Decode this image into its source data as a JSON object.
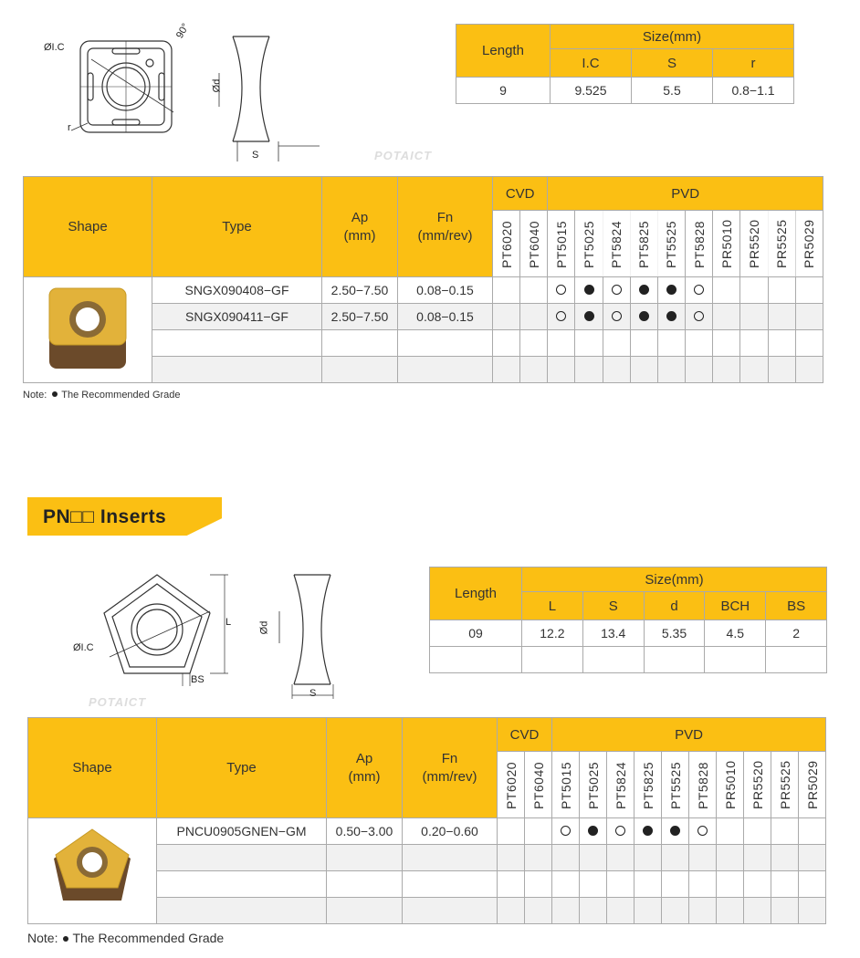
{
  "watermark": "POTAICT",
  "section1": {
    "diagram_labels": {
      "ic": "ØI.C",
      "r": "r",
      "angle": "90°",
      "d": "Ød",
      "s": "S"
    },
    "size_table": {
      "length_header": "Length",
      "size_header": "Size(mm)",
      "cols": [
        "I.C",
        "S",
        "r"
      ],
      "rows": [
        [
          "9",
          "9.525",
          "5.5",
          "0.8−1.1"
        ]
      ]
    },
    "grade_table": {
      "shape_header": "Shape",
      "type_header": "Type",
      "ap_header": "Ap\n(mm)",
      "fn_header": "Fn\n(mm/rev)",
      "cvd": "CVD",
      "pvd": "PVD",
      "grades": [
        "PT6020",
        "PT6040",
        "PT5015",
        "PT5025",
        "PT5824",
        "PT5825",
        "PT5525",
        "PT5828",
        "PR5010",
        "PR5520",
        "PR5525",
        "PR5029"
      ],
      "rows": [
        {
          "type": "SNGX090408−GF",
          "ap": "2.50−7.50",
          "fn": "0.08−0.15",
          "marks": [
            "",
            "",
            "open",
            "filled",
            "open",
            "filled",
            "filled",
            "open",
            "",
            "",
            "",
            ""
          ]
        },
        {
          "type": "SNGX090411−GF",
          "ap": "2.50−7.50",
          "fn": "0.08−0.15",
          "marks": [
            "",
            "",
            "open",
            "filled",
            "open",
            "filled",
            "filled",
            "open",
            "",
            "",
            "",
            ""
          ]
        },
        {
          "type": "",
          "ap": "",
          "fn": "",
          "marks": [
            "",
            "",
            "",
            "",
            "",
            "",
            "",
            "",
            "",
            "",
            "",
            ""
          ]
        },
        {
          "type": "",
          "ap": "",
          "fn": "",
          "marks": [
            "",
            "",
            "",
            "",
            "",
            "",
            "",
            "",
            "",
            "",
            "",
            ""
          ]
        }
      ]
    },
    "note_label": "Note:",
    "note_text": "The Recommended Grade"
  },
  "section2": {
    "title": "PN□□ Inserts",
    "diagram_labels": {
      "ic": "ØI.C",
      "l": "L",
      "bs": "BS",
      "d": "Ød",
      "s": "S"
    },
    "size_table": {
      "length_header": "Length",
      "size_header": "Size(mm)",
      "cols": [
        "L",
        "S",
        "d",
        "BCH",
        "BS"
      ],
      "rows": [
        [
          "09",
          "12.2",
          "13.4",
          "5.35",
          "4.5",
          "2"
        ],
        [
          "",
          "",
          "",
          "",
          "",
          ""
        ]
      ]
    },
    "grade_table": {
      "shape_header": "Shape",
      "type_header": "Type",
      "ap_header": "Ap\n(mm)",
      "fn_header": "Fn\n(mm/rev)",
      "cvd": "CVD",
      "pvd": "PVD",
      "grades": [
        "PT6020",
        "PT6040",
        "PT5015",
        "PT5025",
        "PT5824",
        "PT5825",
        "PT5525",
        "PT5828",
        "PR5010",
        "PR5520",
        "PR5525",
        "PR5029"
      ],
      "rows": [
        {
          "type": "PNCU0905GNEN−GM",
          "ap": "0.50−3.00",
          "fn": "0.20−0.60",
          "marks": [
            "",
            "",
            "open",
            "filled",
            "open",
            "filled",
            "filled",
            "open",
            "",
            "",
            "",
            ""
          ]
        },
        {
          "type": "",
          "ap": "",
          "fn": "",
          "marks": [
            "",
            "",
            "",
            "",
            "",
            "",
            "",
            "",
            "",
            "",
            "",
            ""
          ]
        },
        {
          "type": "",
          "ap": "",
          "fn": "",
          "marks": [
            "",
            "",
            "",
            "",
            "",
            "",
            "",
            "",
            "",
            "",
            "",
            ""
          ]
        },
        {
          "type": "",
          "ap": "",
          "fn": "",
          "marks": [
            "",
            "",
            "",
            "",
            "",
            "",
            "",
            "",
            "",
            "",
            "",
            ""
          ]
        }
      ]
    },
    "note_label": "Note:",
    "note_text": "The Recommended Grade"
  },
  "colors": {
    "header": "#fbbf13",
    "insert_gold": "#e2b23a",
    "insert_brown": "#6b4a2a"
  }
}
